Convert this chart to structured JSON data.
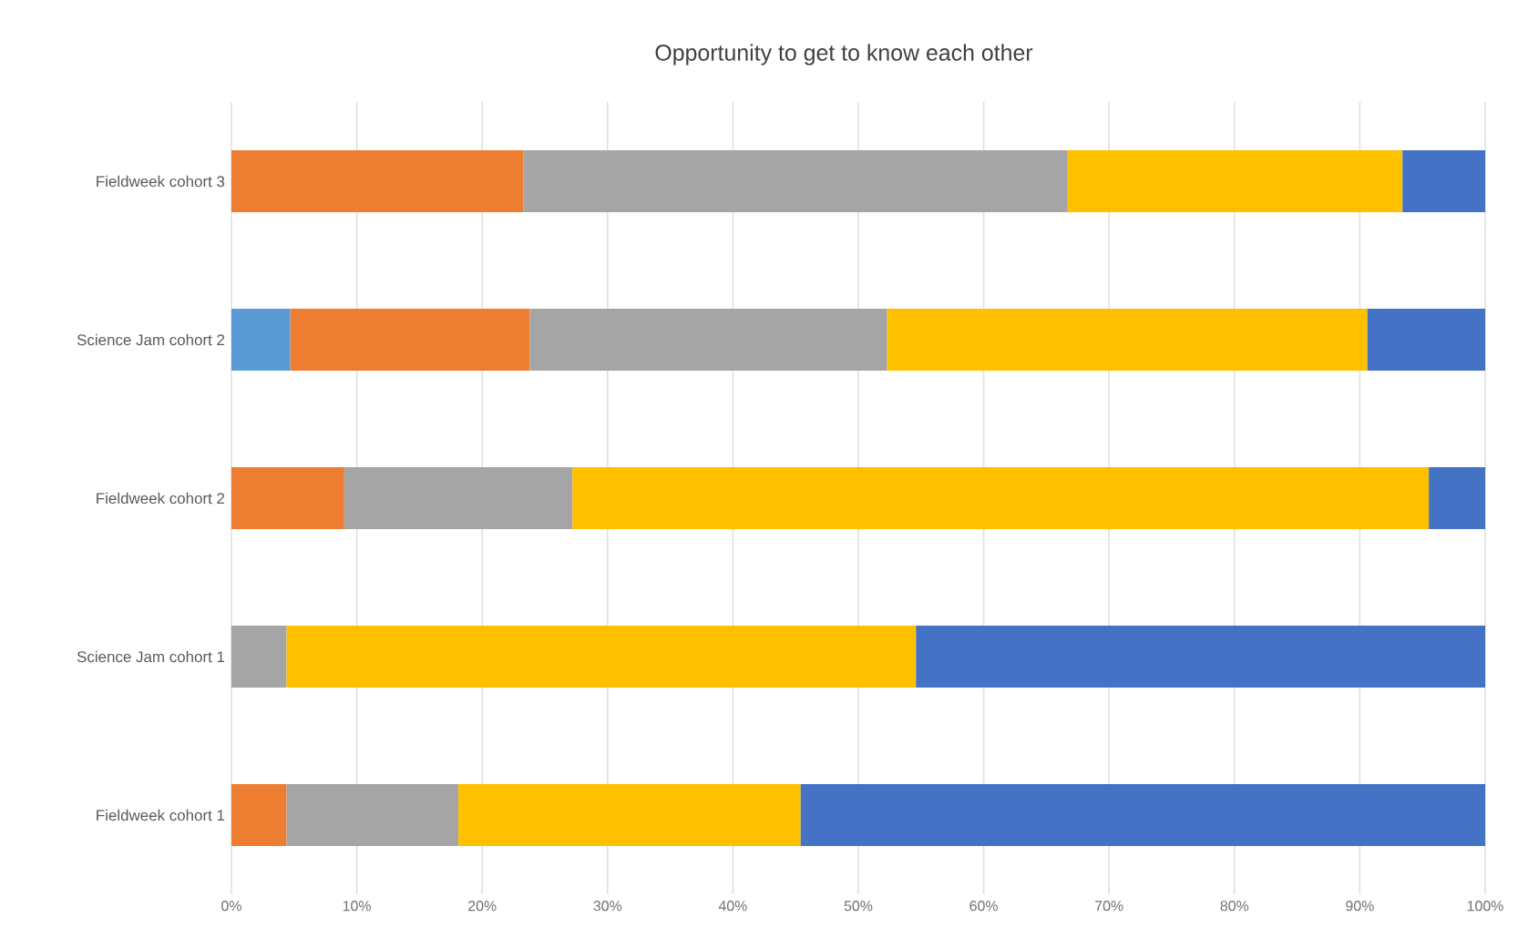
{
  "chart_data": {
    "type": "bar",
    "orientation": "horizontal",
    "stacked": true,
    "title": "Opportunity to get to know each other",
    "categories": [
      "Fieldweek cohort 3",
      "Science Jam cohort 2",
      "Fieldweek cohort 2",
      "Science Jam cohort 1",
      "Fieldweek cohort 1"
    ],
    "series": [
      {
        "color": "#5b9bd5",
        "values": [
          null,
          4.7,
          null,
          null,
          null
        ]
      },
      {
        "color": "#ed7d31",
        "values": [
          23.3,
          19.1,
          9.0,
          null,
          4.4
        ]
      },
      {
        "color": "#a5a5a5",
        "values": [
          43.4,
          28.5,
          18.2,
          4.4,
          13.7
        ]
      },
      {
        "color": "#ffc000",
        "values": [
          26.7,
          38.3,
          68.3,
          50.2,
          27.3
        ]
      },
      {
        "color": "#4472c4",
        "values": [
          6.6,
          9.4,
          4.5,
          45.4,
          54.6
        ]
      }
    ],
    "xlim": [
      0,
      100
    ],
    "xticks": [
      {
        "value": 0,
        "label": "0%"
      },
      {
        "value": 10,
        "label": "10%"
      },
      {
        "value": 20,
        "label": "20%"
      },
      {
        "value": 30,
        "label": "30%"
      },
      {
        "value": 40,
        "label": "40%"
      },
      {
        "value": 50,
        "label": "50%"
      },
      {
        "value": 60,
        "label": "60%"
      },
      {
        "value": 70,
        "label": "70%"
      },
      {
        "value": 80,
        "label": "80%"
      },
      {
        "value": 90,
        "label": "90%"
      },
      {
        "value": 100,
        "label": "100%"
      }
    ],
    "grid": "x"
  }
}
